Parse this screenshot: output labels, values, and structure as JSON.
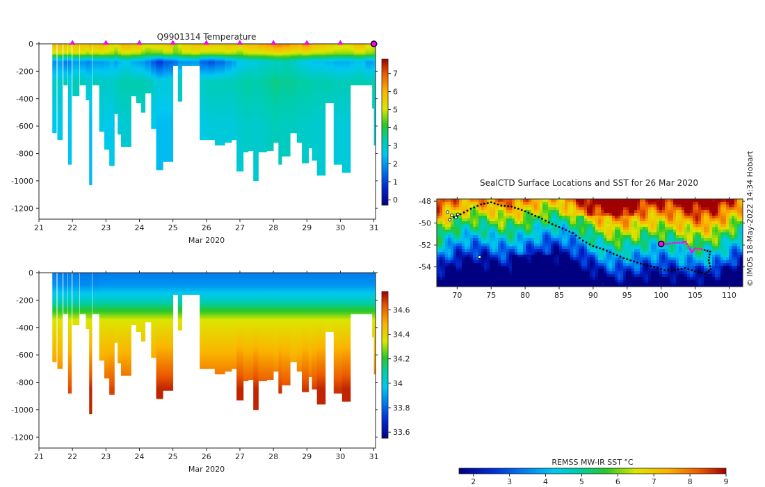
{
  "chart_data": [
    {
      "type": "heatmap",
      "title": "Q9901314  Temperature",
      "xlabel": "Mar 2020",
      "ylabel": "",
      "x_ticks": [
        "21",
        "22",
        "23",
        "24",
        "25",
        "26",
        "27",
        "28",
        "29",
        "30",
        "31"
      ],
      "y_ticks": [
        "0",
        "-200",
        "-400",
        "-600",
        "-800",
        "-1000",
        "-1200"
      ],
      "xlim": [
        21,
        31.05
      ],
      "ylim": [
        -1280,
        0
      ],
      "colorbar": {
        "ticks": [
          "0",
          "1",
          "2",
          "3",
          "4",
          "5",
          "6",
          "7"
        ],
        "range": [
          -0.3,
          7.8
        ]
      },
      "surface_markers_x": [
        22,
        23,
        24,
        25,
        26,
        27,
        28,
        29,
        30
      ],
      "last_position_marker_x": 31,
      "profiles": [
        {
          "x": 21.4,
          "w": 0.12,
          "depth": 650,
          "s": 6.0,
          "sub": 5.0,
          "mix": 1.8,
          "deep": 2.6
        },
        {
          "x": 21.55,
          "w": 0.15,
          "depth": 700,
          "s": 5.9,
          "sub": 5.0,
          "mix": 2.0,
          "deep": 2.6
        },
        {
          "x": 21.73,
          "w": 0.12,
          "depth": 300,
          "s": 5.8,
          "sub": 5.0,
          "mix": 1.6,
          "deep": 2.8
        },
        {
          "x": 21.87,
          "w": 0.1,
          "depth": 880,
          "s": 5.6,
          "sub": 4.9,
          "mix": 1.7,
          "deep": 2.5
        },
        {
          "x": 22.0,
          "w": 0.2,
          "depth": 380,
          "s": 5.8,
          "sub": 5.0,
          "mix": 2.0,
          "deep": 2.8
        },
        {
          "x": 22.22,
          "w": 0.18,
          "depth": 300,
          "s": 5.7,
          "sub": 5.0,
          "mix": 1.9,
          "deep": 2.8
        },
        {
          "x": 22.4,
          "w": 0.1,
          "depth": 410,
          "s": 5.7,
          "sub": 4.8,
          "mix": 1.7,
          "deep": 2.6
        },
        {
          "x": 22.5,
          "w": 0.08,
          "depth": 1030,
          "s": 6.1,
          "sub": 5.0,
          "mix": 1.9,
          "deep": 2.4
        },
        {
          "x": 22.6,
          "w": 0.2,
          "depth": 300,
          "s": 5.8,
          "sub": 4.9,
          "mix": 2.0,
          "deep": 2.8
        },
        {
          "x": 22.8,
          "w": 0.15,
          "depth": 640,
          "s": 6.0,
          "sub": 5.0,
          "mix": 2.0,
          "deep": 2.7
        },
        {
          "x": 22.95,
          "w": 0.15,
          "depth": 770,
          "s": 5.7,
          "sub": 4.9,
          "mix": 2.1,
          "deep": 2.6
        },
        {
          "x": 23.1,
          "w": 0.15,
          "depth": 890,
          "s": 5.4,
          "sub": 4.8,
          "mix": 2.3,
          "deep": 2.6
        },
        {
          "x": 23.25,
          "w": 0.1,
          "depth": 510,
          "s": 5.2,
          "sub": 4.5,
          "mix": 2.0,
          "deep": 2.8
        },
        {
          "x": 23.35,
          "w": 0.1,
          "depth": 660,
          "s": 5.5,
          "sub": 4.8,
          "mix": 2.3,
          "deep": 2.8
        },
        {
          "x": 23.45,
          "w": 0.3,
          "depth": 750,
          "s": 6.1,
          "sub": 5.0,
          "mix": 2.5,
          "deep": 2.9
        },
        {
          "x": 23.75,
          "w": 0.15,
          "depth": 380,
          "s": 5.8,
          "sub": 4.9,
          "mix": 2.2,
          "deep": 2.9
        },
        {
          "x": 23.9,
          "w": 0.15,
          "depth": 430,
          "s": 5.8,
          "sub": 4.9,
          "mix": 2.1,
          "deep": 2.9
        },
        {
          "x": 24.05,
          "w": 0.12,
          "depth": 500,
          "s": 5.5,
          "sub": 4.6,
          "mix": 2.0,
          "deep": 2.9
        },
        {
          "x": 24.17,
          "w": 0.18,
          "depth": 360,
          "s": 5.3,
          "sub": 4.4,
          "mix": 1.7,
          "deep": 2.8
        },
        {
          "x": 24.35,
          "w": 0.15,
          "depth": 620,
          "s": 5.4,
          "sub": 4.5,
          "mix": 1.2,
          "deep": 2.6
        },
        {
          "x": 24.5,
          "w": 0.2,
          "depth": 920,
          "s": 5.5,
          "sub": 4.5,
          "mix": 0.8,
          "deep": 2.4
        },
        {
          "x": 24.7,
          "w": 0.15,
          "depth": 860,
          "s": 5.6,
          "sub": 4.8,
          "mix": 1.2,
          "deep": 2.4
        },
        {
          "x": 24.85,
          "w": 0.15,
          "depth": 860,
          "s": 5.7,
          "sub": 4.8,
          "mix": 1.3,
          "deep": 2.4
        },
        {
          "x": 25.0,
          "w": 0.15,
          "depth": 160,
          "s": 4.8,
          "sub": 4.5,
          "mix": 1.5,
          "deep": 2.8
        },
        {
          "x": 25.15,
          "w": 0.12,
          "depth": 420,
          "s": 5.2,
          "sub": 4.6,
          "mix": 1.9,
          "deep": 2.8
        },
        {
          "x": 25.27,
          "w": 0.28,
          "depth": 160,
          "s": 5.6,
          "sub": 4.9,
          "mix": 1.9,
          "deep": 2.8
        },
        {
          "x": 25.55,
          "w": 0.25,
          "depth": 160,
          "s": 5.9,
          "sub": 5.0,
          "mix": 2.0,
          "deep": 2.8
        },
        {
          "x": 25.8,
          "w": 0.25,
          "depth": 700,
          "s": 5.8,
          "sub": 4.8,
          "mix": 1.3,
          "deep": 2.7
        },
        {
          "x": 26.05,
          "w": 0.2,
          "depth": 700,
          "s": 5.7,
          "sub": 4.8,
          "mix": 1.1,
          "deep": 2.8
        },
        {
          "x": 26.25,
          "w": 0.3,
          "depth": 740,
          "s": 5.7,
          "sub": 4.8,
          "mix": 1.4,
          "deep": 2.8
        },
        {
          "x": 26.55,
          "w": 0.2,
          "depth": 720,
          "s": 5.8,
          "sub": 4.9,
          "mix": 1.8,
          "deep": 2.8
        },
        {
          "x": 26.75,
          "w": 0.15,
          "depth": 700,
          "s": 5.8,
          "sub": 4.8,
          "mix": 2.1,
          "deep": 2.8
        },
        {
          "x": 26.9,
          "w": 0.2,
          "depth": 930,
          "s": 5.6,
          "sub": 4.6,
          "mix": 2.5,
          "deep": 2.9
        },
        {
          "x": 27.1,
          "w": 0.15,
          "depth": 790,
          "s": 5.8,
          "sub": 4.9,
          "mix": 2.6,
          "deep": 3.0
        },
        {
          "x": 27.25,
          "w": 0.15,
          "depth": 780,
          "s": 5.9,
          "sub": 5.0,
          "mix": 2.7,
          "deep": 3.0
        },
        {
          "x": 27.4,
          "w": 0.15,
          "depth": 1000,
          "s": 6.0,
          "sub": 5.0,
          "mix": 2.7,
          "deep": 2.9
        },
        {
          "x": 27.55,
          "w": 0.25,
          "depth": 790,
          "s": 6.3,
          "sub": 5.0,
          "mix": 2.9,
          "deep": 3.0
        },
        {
          "x": 27.8,
          "w": 0.2,
          "depth": 780,
          "s": 6.4,
          "sub": 5.1,
          "mix": 3.0,
          "deep": 3.1
        },
        {
          "x": 28.0,
          "w": 0.15,
          "depth": 720,
          "s": 6.7,
          "sub": 5.2,
          "mix": 3.1,
          "deep": 3.2
        },
        {
          "x": 28.15,
          "w": 0.1,
          "depth": 880,
          "s": 6.7,
          "sub": 5.3,
          "mix": 3.0,
          "deep": 3.1
        },
        {
          "x": 28.25,
          "w": 0.25,
          "depth": 820,
          "s": 6.6,
          "sub": 5.1,
          "mix": 3.2,
          "deep": 3.1
        },
        {
          "x": 28.5,
          "w": 0.2,
          "depth": 650,
          "s": 6.3,
          "sub": 5.0,
          "mix": 3.0,
          "deep": 3.1
        },
        {
          "x": 28.7,
          "w": 0.15,
          "depth": 720,
          "s": 6.2,
          "sub": 4.9,
          "mix": 2.8,
          "deep": 3.0
        },
        {
          "x": 28.85,
          "w": 0.2,
          "depth": 870,
          "s": 6.5,
          "sub": 5.1,
          "mix": 2.6,
          "deep": 3.0
        },
        {
          "x": 29.05,
          "w": 0.1,
          "depth": 760,
          "s": 6.3,
          "sub": 5.0,
          "mix": 2.5,
          "deep": 3.0
        },
        {
          "x": 29.15,
          "w": 0.15,
          "depth": 850,
          "s": 6.0,
          "sub": 4.9,
          "mix": 2.4,
          "deep": 2.9
        },
        {
          "x": 29.3,
          "w": 0.25,
          "depth": 960,
          "s": 5.8,
          "sub": 4.9,
          "mix": 2.4,
          "deep": 2.9
        },
        {
          "x": 29.55,
          "w": 0.25,
          "depth": 430,
          "s": 5.6,
          "sub": 4.8,
          "mix": 2.3,
          "deep": 2.9
        },
        {
          "x": 29.8,
          "w": 0.25,
          "depth": 880,
          "s": 5.4,
          "sub": 4.7,
          "mix": 2.2,
          "deep": 2.8
        },
        {
          "x": 30.05,
          "w": 0.25,
          "depth": 940,
          "s": 5.3,
          "sub": 4.7,
          "mix": 2.2,
          "deep": 2.8
        },
        {
          "x": 30.3,
          "w": 0.1,
          "depth": 300,
          "s": 5.5,
          "sub": 4.7,
          "mix": 2.3,
          "deep": 2.9
        },
        {
          "x": 30.4,
          "w": 0.35,
          "depth": 300,
          "s": 5.9,
          "sub": 4.9,
          "mix": 2.4,
          "deep": 2.9
        },
        {
          "x": 30.75,
          "w": 0.2,
          "depth": 300,
          "s": 5.3,
          "sub": 4.7,
          "mix": 2.0,
          "deep": 2.8
        },
        {
          "x": 30.95,
          "w": 0.05,
          "depth": 470,
          "s": 5.1,
          "sub": 4.6,
          "mix": 2.1,
          "deep": 2.9
        },
        {
          "x": 31.0,
          "w": 0.05,
          "depth": 740,
          "s": 5.0,
          "sub": 4.5,
          "mix": 2.2,
          "deep": 2.9
        }
      ]
    },
    {
      "type": "heatmap",
      "title": "",
      "xlabel": "Mar 2020",
      "ylabel": "",
      "x_ticks": [
        "21",
        "22",
        "23",
        "24",
        "25",
        "26",
        "27",
        "28",
        "29",
        "30",
        "31"
      ],
      "y_ticks": [
        "0",
        "-200",
        "-400",
        "-600",
        "-800",
        "-1000",
        "-1200"
      ],
      "xlim": [
        21,
        31.05
      ],
      "ylim": [
        -1280,
        0
      ],
      "colorbar": {
        "ticks": [
          "33.6",
          "33.8",
          "34",
          "34.2",
          "34.4",
          "34.6"
        ],
        "range": [
          33.55,
          34.75
        ]
      },
      "profiles_note": "same profile x, width and depth as temperature panel",
      "salinity_profiles": [
        {
          "s": 33.88,
          "h": 34.05,
          "d": 34.62
        },
        {
          "s": 33.88,
          "h": 34.05,
          "d": 34.62
        },
        {
          "s": 33.87,
          "h": 34.05,
          "d": 34.55
        },
        {
          "s": 33.88,
          "h": 34.05,
          "d": 34.65
        },
        {
          "s": 33.88,
          "h": 34.05,
          "d": 34.57
        },
        {
          "s": 33.87,
          "h": 34.05,
          "d": 34.55
        },
        {
          "s": 33.87,
          "h": 34.05,
          "d": 34.57
        },
        {
          "s": 33.88,
          "h": 34.05,
          "d": 34.7
        },
        {
          "s": 33.87,
          "h": 34.05,
          "d": 34.56
        },
        {
          "s": 33.88,
          "h": 34.05,
          "d": 34.62
        },
        {
          "s": 33.88,
          "h": 34.05,
          "d": 34.64
        },
        {
          "s": 33.88,
          "h": 34.05,
          "d": 34.66
        },
        {
          "s": 33.88,
          "h": 34.05,
          "d": 34.6
        },
        {
          "s": 33.88,
          "h": 34.05,
          "d": 34.63
        },
        {
          "s": 33.88,
          "h": 34.05,
          "d": 34.64
        },
        {
          "s": 33.88,
          "h": 34.05,
          "d": 34.56
        },
        {
          "s": 33.88,
          "h": 34.05,
          "d": 34.57
        },
        {
          "s": 33.88,
          "h": 34.05,
          "d": 34.6
        },
        {
          "s": 33.88,
          "h": 34.05,
          "d": 34.56
        },
        {
          "s": 33.88,
          "h": 34.05,
          "d": 34.63
        },
        {
          "s": 33.88,
          "h": 34.05,
          "d": 34.7
        },
        {
          "s": 33.88,
          "h": 34.05,
          "d": 34.7
        },
        {
          "s": 33.88,
          "h": 34.05,
          "d": 34.7
        },
        {
          "s": 33.88,
          "h": 34.05,
          "d": 34.3
        },
        {
          "s": 33.88,
          "h": 34.05,
          "d": 34.56
        },
        {
          "s": 33.88,
          "h": 34.05,
          "d": 34.3
        },
        {
          "s": 33.88,
          "h": 34.05,
          "d": 34.3
        },
        {
          "s": 33.88,
          "h": 34.05,
          "d": 34.64
        },
        {
          "s": 33.88,
          "h": 34.05,
          "d": 34.64
        },
        {
          "s": 33.88,
          "h": 34.05,
          "d": 34.64
        },
        {
          "s": 33.88,
          "h": 34.05,
          "d": 34.64
        },
        {
          "s": 33.88,
          "h": 34.05,
          "d": 34.64
        },
        {
          "s": 33.88,
          "h": 34.05,
          "d": 34.7
        },
        {
          "s": 33.88,
          "h": 34.05,
          "d": 34.66
        },
        {
          "s": 33.88,
          "h": 34.05,
          "d": 34.66
        },
        {
          "s": 33.88,
          "h": 34.05,
          "d": 34.7
        },
        {
          "s": 33.88,
          "h": 34.05,
          "d": 34.66
        },
        {
          "s": 33.88,
          "h": 34.05,
          "d": 34.66
        },
        {
          "s": 33.88,
          "h": 34.05,
          "d": 34.64
        },
        {
          "s": 33.88,
          "h": 34.05,
          "d": 34.68
        },
        {
          "s": 33.88,
          "h": 34.05,
          "d": 34.66
        },
        {
          "s": 33.88,
          "h": 34.05,
          "d": 34.62
        },
        {
          "s": 33.88,
          "h": 34.05,
          "d": 34.64
        },
        {
          "s": 33.88,
          "h": 34.05,
          "d": 34.68
        },
        {
          "s": 33.88,
          "h": 34.05,
          "d": 34.64
        },
        {
          "s": 33.88,
          "h": 34.05,
          "d": 34.67
        },
        {
          "s": 33.88,
          "h": 34.05,
          "d": 34.7
        },
        {
          "s": 33.88,
          "h": 34.05,
          "d": 34.58
        },
        {
          "s": 33.88,
          "h": 34.05,
          "d": 34.68
        },
        {
          "s": 33.88,
          "h": 34.05,
          "d": 34.7
        },
        {
          "s": 33.88,
          "h": 34.05,
          "d": 34.56
        },
        {
          "s": 33.88,
          "h": 34.05,
          "d": 34.56
        },
        {
          "s": 33.88,
          "h": 34.05,
          "d": 34.56
        },
        {
          "s": 33.88,
          "h": 34.05,
          "d": 34.58
        },
        {
          "s": 33.88,
          "h": 34.05,
          "d": 34.64
        }
      ]
    },
    {
      "type": "heatmap",
      "title": "SealCTD Surface Locations and SST for 26 Mar 2020",
      "xlabel": "",
      "ylabel": "",
      "x_ticks": [
        "70",
        "75",
        "80",
        "85",
        "90",
        "95",
        "100",
        "105",
        "110"
      ],
      "y_ticks": [
        "-48",
        "-50",
        "-52",
        "-54"
      ],
      "xlim": [
        67,
        112
      ],
      "ylim": [
        -55.8,
        -47.8
      ],
      "colorbar": {
        "label": "REMSS MW-IR SST °C",
        "ticks": [
          "2",
          "3",
          "4",
          "5",
          "6",
          "7",
          "8",
          "9"
        ],
        "range": [
          1.6,
          9.0
        ]
      },
      "current_position": {
        "lon": 100,
        "lat": -51.9
      },
      "track": [
        [
          69.0,
          -49.6
        ],
        [
          70.5,
          -49.2
        ],
        [
          72.0,
          -48.7
        ],
        [
          73.5,
          -48.3
        ],
        [
          75.0,
          -48.1
        ],
        [
          76.5,
          -48.4
        ],
        [
          78.0,
          -48.5
        ],
        [
          79.5,
          -48.8
        ],
        [
          81.0,
          -49.2
        ],
        [
          82.5,
          -49.6
        ],
        [
          84.0,
          -50.1
        ],
        [
          85.5,
          -50.5
        ],
        [
          87.0,
          -50.9
        ],
        [
          88.5,
          -51.6
        ],
        [
          90.0,
          -52.1
        ],
        [
          91.5,
          -52.4
        ],
        [
          93.0,
          -52.8
        ],
        [
          94.5,
          -53.2
        ],
        [
          96.0,
          -53.5
        ],
        [
          97.5,
          -53.8
        ],
        [
          99.0,
          -54.0
        ],
        [
          100.5,
          -54.3
        ],
        [
          102.0,
          -54.3
        ],
        [
          103.5,
          -54.1
        ],
        [
          105.0,
          -54.4
        ],
        [
          106.5,
          -54.6
        ],
        [
          107.3,
          -54.2
        ],
        [
          107.0,
          -53.4
        ],
        [
          107.2,
          -52.6
        ],
        [
          106.0,
          -52.4
        ],
        [
          105.0,
          -52.3
        ],
        [
          104.5,
          -52.7
        ],
        [
          104.2,
          -52.3
        ],
        [
          103.6,
          -51.7
        ],
        [
          103.0,
          -51.8
        ],
        [
          102.0,
          -51.8
        ],
        [
          101.0,
          -51.9
        ],
        [
          100.0,
          -51.9
        ]
      ],
      "recent_track_from_index": 29,
      "other_tags": [
        [
          68.6,
          -49.0
        ],
        [
          69.2,
          -49.3
        ],
        [
          69.8,
          -49.5
        ],
        [
          68.9,
          -49.7
        ],
        [
          70.1,
          -49.2
        ],
        [
          73.3,
          -53.1
        ]
      ],
      "side_text": "© IMOS 18-May-2022 14:34 Hobart"
    }
  ]
}
